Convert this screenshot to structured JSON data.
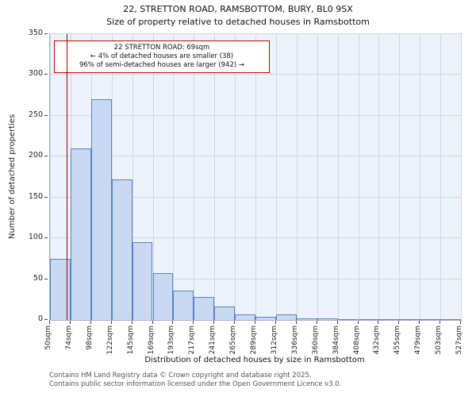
{
  "annotation": {
    "line1": "22 STRETTON ROAD: 69sqm",
    "line2": "← 4% of detached houses are smaller (38)",
    "line3": "96% of semi-detached houses are larger (942) →"
  },
  "footer": {
    "line1": "Contains HM Land Registry data © Crown copyright and database right 2025.",
    "line2": "Contains public sector information licensed under the Open Government Licence v3.0."
  },
  "chart_data": {
    "type": "bar",
    "title": "22, STRETTON ROAD, RAMSBOTTOM, BURY, BL0 9SX",
    "subtitle": "Size of property relative to detached houses in Ramsbottom",
    "xlabel": "Distribution of detached houses by size in Ramsbottom",
    "ylabel": "Number of detached properties",
    "bin_edges_sqm": [
      50,
      74,
      98,
      122,
      145,
      169,
      193,
      217,
      241,
      265,
      289,
      312,
      336,
      360,
      384,
      408,
      432,
      455,
      479,
      503,
      527
    ],
    "categories": [
      "50sqm",
      "74sqm",
      "98sqm",
      "122sqm",
      "145sqm",
      "169sqm",
      "193sqm",
      "217sqm",
      "241sqm",
      "265sqm",
      "289sqm",
      "312sqm",
      "336sqm",
      "360sqm",
      "384sqm",
      "408sqm",
      "432sqm",
      "455sqm",
      "479sqm",
      "503sqm",
      "527sqm"
    ],
    "values": [
      75,
      210,
      270,
      172,
      95,
      57,
      36,
      28,
      17,
      7,
      4,
      7,
      2,
      2,
      1,
      1,
      1,
      1,
      1,
      1
    ],
    "ylim": [
      0,
      350
    ],
    "yticks": [
      0,
      50,
      100,
      150,
      200,
      250,
      300,
      350
    ],
    "grid": true,
    "legend": "none",
    "marker_value_sqm": 69,
    "colors": {
      "bar_fill": "#c9d9f1",
      "bar_border": "#5a82c2",
      "marker_line": "#990000",
      "annotation_border": "#cc0000",
      "grid": "#ccd6e8",
      "plot_bg": "#eef3fb"
    }
  }
}
